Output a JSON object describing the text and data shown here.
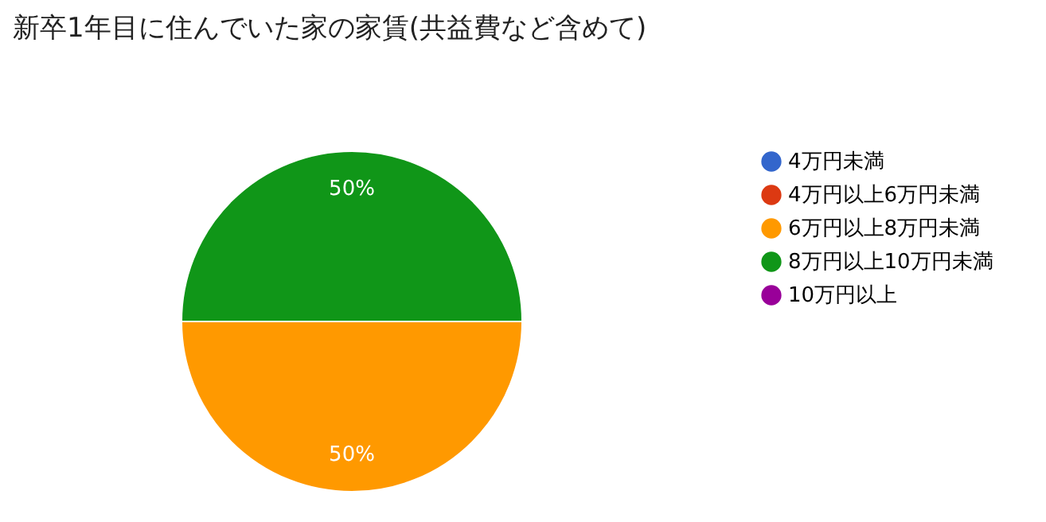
{
  "chart_data": {
    "type": "pie",
    "title": "新卒1年目に住んでいた家の家賃(共益費など含めて)",
    "categories": [
      "4万円未満",
      "4万円以上6万円未満",
      "6万円以上8万円未満",
      "8万円以上10万円未満",
      "10万円以上"
    ],
    "values": [
      0,
      0,
      50,
      50,
      0
    ],
    "colors": [
      "#3366cc",
      "#dc3912",
      "#ff9900",
      "#109618",
      "#990099"
    ],
    "value_labels": [
      null,
      null,
      "50%",
      "50%",
      null
    ],
    "legend": "right"
  }
}
